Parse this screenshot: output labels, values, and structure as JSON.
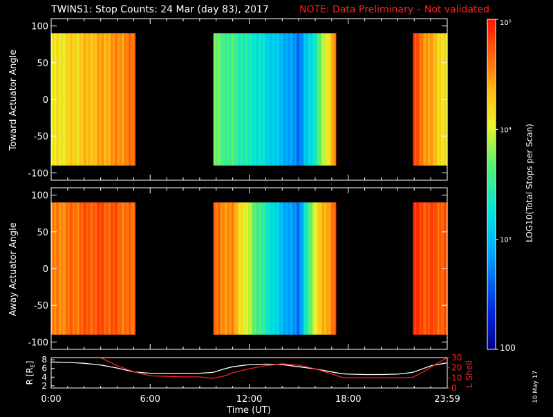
{
  "title": "TWINS1: Stop Counts: 24 Mar (day  83), 2017",
  "note": "NOTE: Data Preliminary – Not validated",
  "datestamp": "10 May 17",
  "colors": {
    "background": "#000000",
    "axes": "#ffffff",
    "note": "#ff2020",
    "lshell": "#ff2020",
    "r_line": "#ffffff"
  },
  "chart_data": [
    {
      "type": "heatmap",
      "title": "",
      "ylabel": "Toward Actuator Angle",
      "xlim": [
        0,
        24
      ],
      "ylim": [
        -110,
        110
      ],
      "y_data_range": [
        -90,
        90
      ],
      "yticks": [
        100,
        50,
        0,
        -50,
        -100
      ],
      "data_intervals_hours": [
        [
          0,
          5.08
        ],
        [
          9.83,
          17.25
        ],
        [
          21.92,
          24
        ]
      ],
      "log10_counts_profile": [
        {
          "t": 0.0,
          "v": 4.05
        },
        {
          "t": 1.0,
          "v": 4.2
        },
        {
          "t": 2.0,
          "v": 4.3
        },
        {
          "t": 3.0,
          "v": 4.4
        },
        {
          "t": 4.0,
          "v": 4.5
        },
        {
          "t": 5.0,
          "v": 4.6
        },
        {
          "t": 9.83,
          "v": 3.7
        },
        {
          "t": 11.0,
          "v": 3.55
        },
        {
          "t": 12.5,
          "v": 3.3
        },
        {
          "t": 14.0,
          "v": 3.0
        },
        {
          "t": 15.0,
          "v": 2.7
        },
        {
          "t": 16.0,
          "v": 3.4
        },
        {
          "t": 17.25,
          "v": 4.6
        },
        {
          "t": 21.92,
          "v": 4.8
        },
        {
          "t": 23.0,
          "v": 4.4
        },
        {
          "t": 24.0,
          "v": 4.1
        }
      ]
    },
    {
      "type": "heatmap",
      "title": "",
      "ylabel": "Away Actuator Angle",
      "xlim": [
        0,
        24
      ],
      "ylim": [
        -110,
        110
      ],
      "y_data_range": [
        -90,
        90
      ],
      "yticks": [
        100,
        50,
        0,
        -50,
        -100
      ],
      "data_intervals_hours": [
        [
          0,
          5.08
        ],
        [
          9.83,
          17.25
        ],
        [
          21.92,
          24
        ]
      ],
      "log10_counts_profile": [
        {
          "t": 0.0,
          "v": 4.5
        },
        {
          "t": 1.0,
          "v": 4.6
        },
        {
          "t": 2.0,
          "v": 4.7
        },
        {
          "t": 3.0,
          "v": 4.75
        },
        {
          "t": 4.0,
          "v": 4.7
        },
        {
          "t": 5.0,
          "v": 4.6
        },
        {
          "t": 9.83,
          "v": 4.6
        },
        {
          "t": 11.0,
          "v": 4.5
        },
        {
          "t": 12.5,
          "v": 3.6
        },
        {
          "t": 14.0,
          "v": 3.0
        },
        {
          "t": 15.0,
          "v": 2.7
        },
        {
          "t": 16.0,
          "v": 4.1
        },
        {
          "t": 17.25,
          "v": 4.7
        },
        {
          "t": 21.92,
          "v": 4.85
        },
        {
          "t": 23.0,
          "v": 4.75
        },
        {
          "t": 24.0,
          "v": 4.7
        }
      ]
    },
    {
      "type": "line",
      "title": "",
      "xlabel": "Time (UT)",
      "ylabel": "R [RE]",
      "y2label": "L Shell",
      "xlim": [
        0,
        24
      ],
      "ylim": [
        1.5,
        8.5
      ],
      "y2lim": [
        0,
        30
      ],
      "xticklabels": [
        "0:00",
        "6:00",
        "12:00",
        "18:00",
        "23:59"
      ],
      "xticks_hours": [
        0,
        6,
        12,
        18,
        24
      ],
      "yticks": [
        2,
        4,
        6,
        8
      ],
      "y2ticks": [
        0,
        10,
        20,
        30
      ],
      "series": [
        {
          "axis": "left",
          "x": [
            0,
            1,
            2,
            3,
            4,
            5,
            6,
            7,
            8,
            9,
            9.8,
            10.5,
            11,
            12,
            13,
            14,
            15,
            16,
            17,
            17.6,
            18,
            19,
            20,
            21,
            21.9,
            22.5,
            23,
            24
          ],
          "y": [
            7.5,
            7.4,
            7.2,
            6.8,
            6.1,
            5.2,
            4.9,
            4.9,
            4.9,
            4.9,
            5.1,
            5.9,
            6.4,
            6.9,
            7.0,
            6.9,
            6.4,
            5.9,
            5.2,
            4.8,
            4.7,
            4.6,
            4.6,
            4.7,
            5.1,
            5.9,
            6.6,
            7.3
          ]
        },
        {
          "axis": "right",
          "x": [
            3,
            4,
            5,
            6,
            7,
            8,
            9,
            9.8,
            10.5,
            11,
            12,
            13,
            14,
            15,
            16,
            17,
            17.6,
            18,
            19,
            20,
            21,
            21.9,
            22.5,
            23,
            24
          ],
          "y": [
            30,
            22,
            16,
            12,
            11.5,
            11,
            11,
            9.5,
            12,
            15,
            19,
            22,
            24,
            22.5,
            19,
            14,
            10.5,
            10,
            10,
            10,
            10,
            10.5,
            15.5,
            20.5,
            30
          ]
        }
      ]
    },
    {
      "type": "colorbar",
      "label": "LOG10(Total Stops per Scan)",
      "scale": "log",
      "range": [
        100,
        100000
      ],
      "ticklabels": [
        "10⁵",
        "10⁴",
        "10³",
        "100"
      ],
      "tickvalues": [
        100000,
        10000,
        1000,
        100
      ]
    }
  ]
}
